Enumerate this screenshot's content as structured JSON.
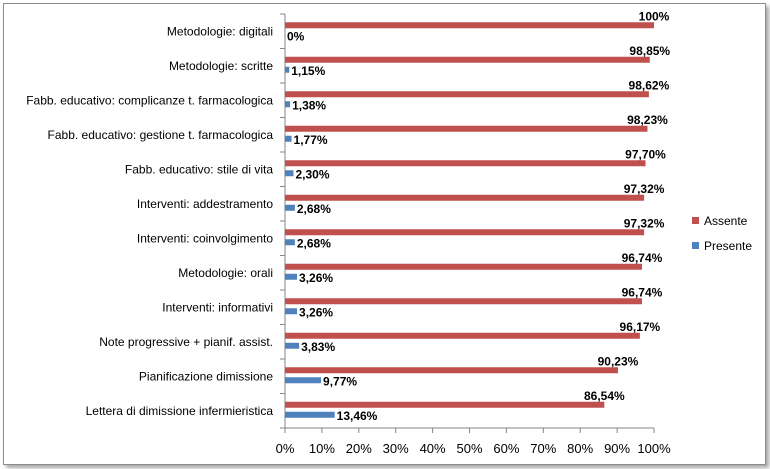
{
  "chart_data": {
    "type": "bar",
    "orientation": "horizontal",
    "categories": [
      "Metodologie: digitali",
      "Metodologie: scritte",
      "Fabb. educativo: complicanze t. farmacologica",
      "Fabb. educativo: gestione t. farmacologica",
      "Fabb. educativo: stile di vita",
      "Interventi: addestramento",
      "Interventi: coinvolgimento",
      "Metodologie: orali",
      "Interventi: informativi",
      "Note progressive + pianif. assist.",
      "Pianificazione dimissione",
      "Lettera di dimissione infermieristica"
    ],
    "series": [
      {
        "name": "Assente",
        "color": "#c0504d",
        "values": [
          100,
          98.85,
          98.62,
          98.23,
          97.7,
          97.32,
          97.32,
          96.74,
          96.74,
          96.17,
          90.23,
          86.54
        ],
        "labels": [
          "100%",
          "98,85%",
          "98,62%",
          "98,23%",
          "97,70%",
          "97,32%",
          "97,32%",
          "96,74%",
          "96,74%",
          "96,17%",
          "90,23%",
          "86,54%"
        ]
      },
      {
        "name": "Presente",
        "color": "#4f81bd",
        "values": [
          0,
          1.15,
          1.38,
          1.77,
          2.3,
          2.68,
          2.68,
          3.26,
          3.26,
          3.83,
          9.77,
          13.46
        ],
        "labels": [
          "0%",
          "1,15%",
          "1,38%",
          "1,77%",
          "2,30%",
          "2,68%",
          "2,68%",
          "3,26%",
          "3,26%",
          "3,83%",
          "9,77%",
          "13,46%"
        ]
      }
    ],
    "xlim": [
      0,
      100
    ],
    "xticks": [
      "0%",
      "10%",
      "20%",
      "30%",
      "40%",
      "50%",
      "60%",
      "70%",
      "80%",
      "90%",
      "100%"
    ],
    "title": "",
    "xlabel": "",
    "ylabel": "",
    "grid": false,
    "legend_position": "right"
  }
}
